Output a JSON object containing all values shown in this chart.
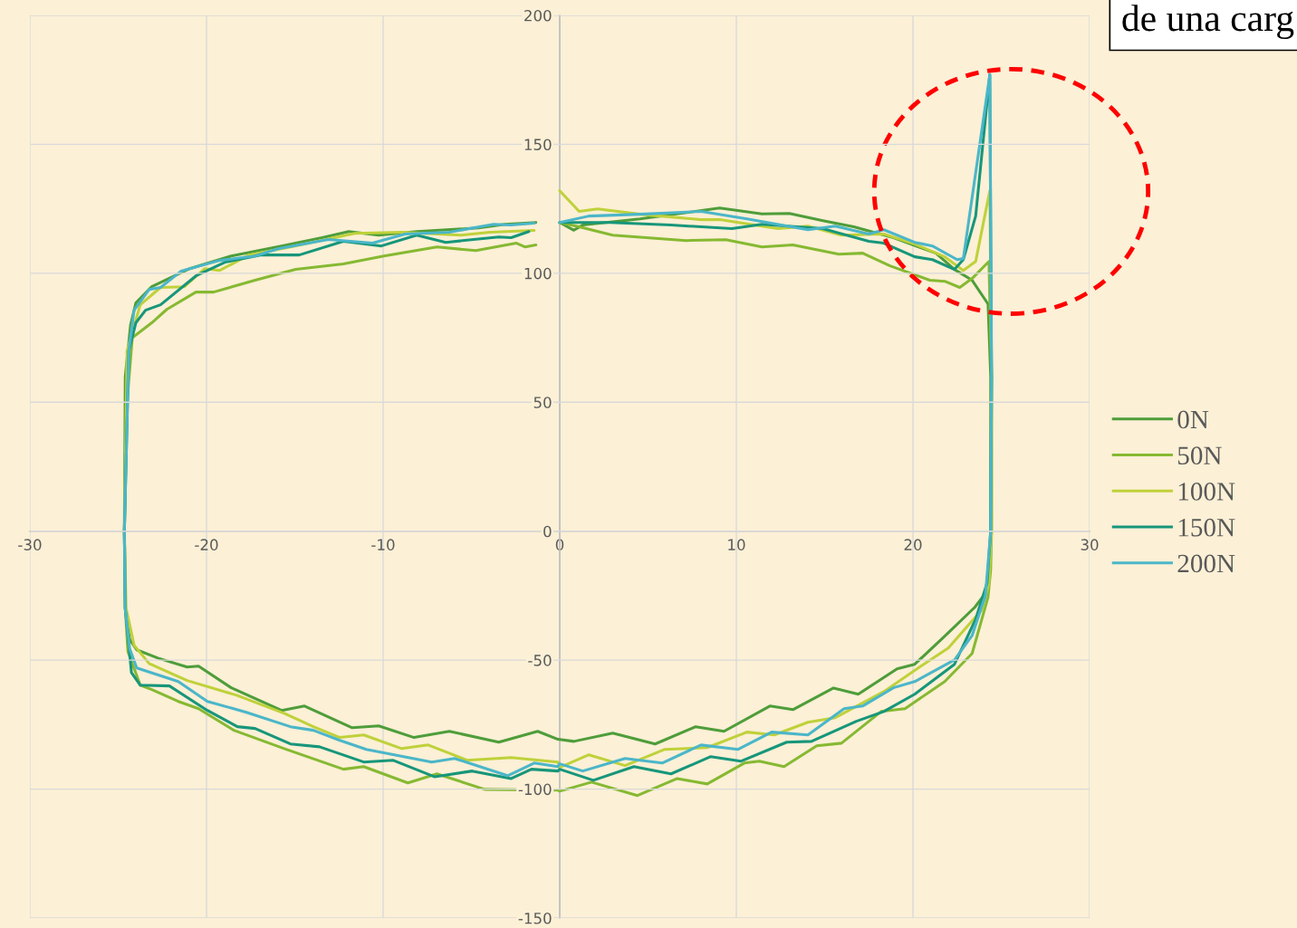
{
  "chart_data": {
    "type": "line",
    "xlim": [
      -30,
      30
    ],
    "ylim": [
      -150,
      200
    ],
    "xticks": [
      -30,
      -20,
      -10,
      0,
      10,
      20,
      30
    ],
    "yticks": [
      -150,
      -100,
      -50,
      0,
      50,
      100,
      150,
      200
    ],
    "grid": true,
    "legend": "right",
    "line_style": "solid",
    "marker": "none",
    "annotations": [
      "de una carg"
    ],
    "series": [
      {
        "name": "0N",
        "color": "#4e9d3a",
        "x": [
          0,
          0.8,
          1.3,
          4.55,
          9.05,
          11.45,
          13,
          14.9,
          16.65,
          18.9,
          21.3,
          22.35,
          23.35,
          24.25,
          24.4,
          24.4,
          24.3,
          24.0,
          23.5,
          21.8,
          20.1,
          19.1,
          16.9,
          15.5,
          13.2,
          11.9,
          9.3,
          7.7,
          5.4,
          3.0,
          0.8,
          -0.1,
          -1.25,
          -3.45,
          -6.25,
          -8.25,
          -10.25,
          -11.75,
          -14.45,
          -15.75,
          -18.6,
          -20.45,
          -21.1,
          -22.75,
          -23.95,
          -24.35,
          -24.6,
          -24.65,
          -24.6,
          -24.3,
          -24,
          -23.1,
          -20.95,
          -18.6,
          -15.75,
          -13.45,
          -11.95,
          -10.25,
          -8.1,
          -4.6,
          -3.1,
          -1.35
        ],
        "values": [
          119.7,
          116.7,
          118.7,
          121.1,
          125.3,
          123,
          123.2,
          120.4,
          118,
          113.8,
          107.8,
          101.5,
          97.3,
          88.1,
          60,
          0,
          -20,
          -25,
          -29.5,
          -40.7,
          -51.6,
          -53.4,
          -63.2,
          -60.8,
          -69.2,
          -67.8,
          -77.6,
          -75.8,
          -82.5,
          -78.3,
          -81.5,
          -80.7,
          -77.6,
          -81.8,
          -77.6,
          -80,
          -75.5,
          -76.2,
          -67.8,
          -69.5,
          -60.7,
          -52.3,
          -52.7,
          -49.2,
          -46,
          -42,
          -30,
          0,
          60,
          80,
          88.5,
          94.8,
          101.8,
          106.7,
          110.6,
          113.8,
          116.2,
          114.8,
          116.2,
          117.6,
          119,
          119.7
        ]
      },
      {
        "name": "50N",
        "color": "#86b932",
        "x": [
          0,
          1.1,
          3,
          7.15,
          9.4,
          11.45,
          13.2,
          15.8,
          17.15,
          18.7,
          20.95,
          21.8,
          22.65,
          23.35,
          24.3,
          24.45,
          24.45,
          24.4,
          24.25,
          23.35,
          21.8,
          19.55,
          18.2,
          15.95,
          14.55,
          12.7,
          11.3,
          10.45,
          8.35,
          6.65,
          4.4,
          1.8,
          0,
          -0.1,
          -4.25,
          -6.95,
          -8.6,
          -11.1,
          -12.25,
          -15.6,
          -18.45,
          -20.45,
          -21.6,
          -23.1,
          -23.75,
          -24.45,
          -24.6,
          -24.65,
          -24.5,
          -24.2,
          -23.1,
          -22.25,
          -20.6,
          -19.6,
          -17.25,
          -14.95,
          -12.25,
          -9.95,
          -6.95,
          -4.75,
          -2.45,
          -1.95,
          -1.35
        ],
        "values": [
          119.7,
          118,
          114.8,
          112.7,
          113,
          110.2,
          111,
          107.4,
          107.8,
          102.9,
          97.3,
          96.9,
          94.5,
          98,
          104.6,
          60,
          0,
          -15,
          -25.6,
          -47.4,
          -58.3,
          -68.8,
          -69.9,
          -82.2,
          -83.2,
          -91.3,
          -89.2,
          -89.9,
          -98,
          -95.9,
          -102.5,
          -97.3,
          -100.8,
          -100.4,
          -100.1,
          -94.1,
          -97.6,
          -91.3,
          -92.3,
          -84.3,
          -77.2,
          -68.8,
          -66,
          -61.4,
          -59.7,
          -46.7,
          -30,
          0,
          50,
          75,
          80.8,
          86,
          92.7,
          92.7,
          97.3,
          101.5,
          103.6,
          106.7,
          110.2,
          108.8,
          111.7,
          110.2,
          111
        ]
      },
      {
        "name": "100N",
        "color": "#bfd13a",
        "x": [
          0,
          1.1,
          2.15,
          4.55,
          8,
          9.05,
          12.35,
          14.05,
          15.95,
          18.35,
          20.1,
          21.8,
          22.85,
          23.55,
          24.35,
          24.45,
          24.45,
          24.3,
          23.9,
          22,
          20.45,
          18.35,
          15.6,
          14.05,
          12.15,
          10.6,
          8.35,
          5.95,
          3.7,
          1.65,
          0,
          -0.1,
          -2.75,
          -5.25,
          -7.45,
          -8.95,
          -11.1,
          -12.45,
          -13.95,
          -15.6,
          -18.3,
          -21.1,
          -23.25,
          -24.1,
          -24.55,
          -24.65,
          -24.5,
          -23.75,
          -22.6,
          -21.25,
          -20.1,
          -19.25,
          -17.6,
          -15.25,
          -11.6,
          -8.95,
          -5.6,
          -3.95,
          -1.45
        ],
        "values": [
          132,
          124,
          125,
          122.9,
          120.8,
          120.8,
          117.3,
          118.3,
          114.8,
          115.2,
          111.3,
          106.4,
          101.1,
          104.6,
          132,
          60,
          0,
          -20,
          -30.5,
          -45.3,
          -52.3,
          -62.2,
          -72.3,
          -74.1,
          -79,
          -77.9,
          -83.9,
          -84.6,
          -90.9,
          -86.7,
          -91.6,
          -89.5,
          -87.8,
          -88.8,
          -82.9,
          -84.3,
          -79,
          -80,
          -75.8,
          -70.6,
          -63.6,
          -57.9,
          -51.3,
          -44.2,
          -30,
          0,
          70,
          87.8,
          94.5,
          94.8,
          101.8,
          101.1,
          107.1,
          110.2,
          115.5,
          115.9,
          114.8,
          115.9,
          116.6
        ]
      },
      {
        "name": "150N",
        "color": "#17967a",
        "x": [
          0,
          2.85,
          6.3,
          9.75,
          11.45,
          14.9,
          17.5,
          18.35,
          20.1,
          21.1,
          22.35,
          22.85,
          23.55,
          24.35,
          24.45,
          24.4,
          24.2,
          23.55,
          22.35,
          20.1,
          18.35,
          16.8,
          14.25,
          12.85,
          10.25,
          8.55,
          6.3,
          4.2,
          1.9,
          0,
          -0.1,
          -1.6,
          -2.75,
          -4.95,
          -7.1,
          -9.45,
          -11.1,
          -13.6,
          -15.25,
          -17.25,
          -18.25,
          -19.95,
          -22.1,
          -23.75,
          -24.25,
          -24.6,
          -24.65,
          -24.4,
          -24,
          -23.45,
          -22.6,
          -20.6,
          -18.95,
          -16.95,
          -14.75,
          -12.25,
          -10.1,
          -8.1,
          -6.45,
          -3.45,
          -2.75,
          -1.75
        ],
        "values": [
          119.7,
          119.7,
          118.7,
          117.3,
          119,
          117.3,
          112.4,
          111.7,
          106.4,
          105.3,
          101.5,
          105.3,
          122.2,
          177,
          60,
          0,
          -20,
          -34.1,
          -51.6,
          -63.2,
          -69.9,
          -73.7,
          -81.5,
          -81.8,
          -89.2,
          -87.4,
          -94.1,
          -91.3,
          -96.6,
          -92.3,
          -93,
          -92.3,
          -95.9,
          -93,
          -95.2,
          -88.8,
          -89.5,
          -83.6,
          -82.5,
          -76.5,
          -75.8,
          -69.5,
          -60,
          -59.7,
          -54.8,
          -30,
          0,
          70,
          80.8,
          85.7,
          87.8,
          99,
          104.3,
          107.1,
          107.1,
          112.4,
          110.6,
          114.8,
          112,
          114.1,
          113.8,
          116.2
        ]
      },
      {
        "name": "200N",
        "color": "#4bb6c9",
        "x": [
          0,
          1.65,
          4.55,
          8,
          10.6,
          14.05,
          15.6,
          17.5,
          18.35,
          20.1,
          21.1,
          22.5,
          22.85,
          24.35,
          24.45,
          24.4,
          24.1,
          23.35,
          22.35,
          20.1,
          18.9,
          17.15,
          16.1,
          14.05,
          12,
          10.1,
          8,
          5.8,
          3.7,
          1.3,
          0,
          -0.1,
          -1.45,
          -2.95,
          -5.95,
          -7.25,
          -10.95,
          -12.45,
          -13.95,
          -15.25,
          -17.75,
          -19.95,
          -21.6,
          -23.95,
          -24.35,
          -24.6,
          -24.65,
          -24.4,
          -24.1,
          -23.25,
          -22.6,
          -21.45,
          -19.25,
          -17.25,
          -15.95,
          -13.1,
          -10.6,
          -8.75,
          -6.25,
          -3.75,
          -2.75,
          -1.45
        ],
        "values": [
          119.7,
          122.2,
          122.9,
          124,
          121.1,
          116.9,
          118.3,
          115.2,
          116.9,
          112,
          110.6,
          105.3,
          105.7,
          177,
          60,
          0,
          -25,
          -40.4,
          -49.9,
          -58.3,
          -60.7,
          -67.8,
          -68.8,
          -79,
          -77.9,
          -84.6,
          -82.9,
          -89.9,
          -88.1,
          -93,
          -90.2,
          -91.3,
          -89.9,
          -94.8,
          -88.1,
          -89.5,
          -84.6,
          -81.1,
          -77.2,
          -75.8,
          -70.2,
          -66,
          -58.3,
          -53,
          -45.6,
          -30,
          0,
          70,
          85.7,
          93.7,
          94.5,
          100.8,
          105,
          106.7,
          109.5,
          113.1,
          111.7,
          115.2,
          115.9,
          119,
          118.7,
          119.4
        ]
      }
    ]
  }
}
